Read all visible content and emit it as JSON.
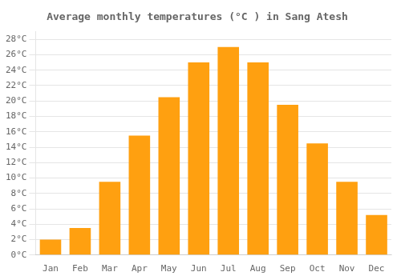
{
  "chart_data": {
    "type": "bar",
    "title": "Average monthly temperatures (°C ) in Sang Atesh",
    "categories": [
      "Jan",
      "Feb",
      "Mar",
      "Apr",
      "May",
      "Jun",
      "Jul",
      "Aug",
      "Sep",
      "Oct",
      "Nov",
      "Dec"
    ],
    "values": [
      2.0,
      3.5,
      9.5,
      15.5,
      20.5,
      25.0,
      27.0,
      25.0,
      19.5,
      14.5,
      9.5,
      5.2
    ],
    "color": "#FFA010",
    "ylim": [
      0,
      29
    ],
    "yticks": [
      {
        "value": 0,
        "label": "0°C"
      },
      {
        "value": 2,
        "label": "2°C"
      },
      {
        "value": 4,
        "label": "4°C"
      },
      {
        "value": 6,
        "label": "6°C"
      },
      {
        "value": 8,
        "label": "8°C"
      },
      {
        "value": 10,
        "label": "10°C"
      },
      {
        "value": 12,
        "label": "12°C"
      },
      {
        "value": 14,
        "label": "14°C"
      },
      {
        "value": 16,
        "label": "16°C"
      },
      {
        "value": 18,
        "label": "18°C"
      },
      {
        "value": 20,
        "label": "20°C"
      },
      {
        "value": 22,
        "label": "22°C"
      },
      {
        "value": 24,
        "label": "24°C"
      },
      {
        "value": 26,
        "label": "26°C"
      },
      {
        "value": 28,
        "label": "28°C"
      }
    ],
    "grid": true
  }
}
